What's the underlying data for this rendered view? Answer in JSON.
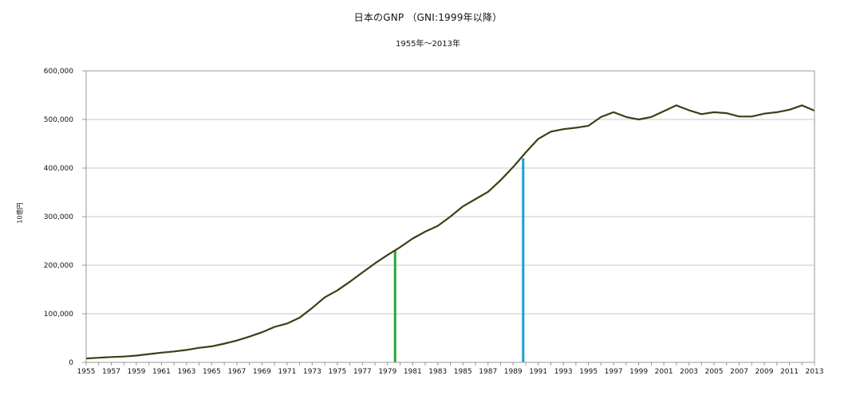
{
  "chart_data": {
    "type": "line",
    "title": "日本のGNP （GNI:1999年以降）",
    "subtitle": "1955年～2013年",
    "ylabel": "10億円",
    "xlabel": "",
    "ylim": [
      0,
      600000
    ],
    "yticks": [
      0,
      100000,
      200000,
      300000,
      400000,
      500000,
      600000
    ],
    "ytick_labels": [
      "0",
      "100,000",
      "200,000",
      "300,000",
      "400,000",
      "500,000",
      "600,000"
    ],
    "xlim": [
      1955,
      2013
    ],
    "xtick_labels": [
      "1955",
      "1957",
      "1959",
      "1961",
      "1963",
      "1965",
      "1967",
      "1969",
      "1971",
      "1973",
      "1975",
      "1977",
      "1979",
      "1981",
      "1983",
      "1985",
      "1987",
      "1989",
      "1991",
      "1993",
      "1995",
      "1997",
      "1999",
      "2001",
      "2003",
      "2005",
      "2007",
      "2009",
      "2011",
      "2013"
    ],
    "grid": true,
    "line_color": "#3b3f14",
    "series": [
      {
        "x": [
          1955,
          1956,
          1957,
          1958,
          1959,
          1960,
          1961,
          1962,
          1963,
          1964,
          1965,
          1966,
          1967,
          1968,
          1969,
          1970,
          1971,
          1972,
          1973,
          1974,
          1975,
          1976,
          1977,
          1978,
          1979,
          1980,
          1981,
          1982,
          1983,
          1984,
          1985,
          1986,
          1987,
          1988,
          1989,
          1990,
          1991,
          1992,
          1993,
          1994,
          1995,
          1996,
          1997,
          1998,
          1999,
          2000,
          2001,
          2002,
          2003,
          2004,
          2005,
          2006,
          2007,
          2008,
          2009,
          2010,
          2011,
          2012,
          2013
        ],
        "values": [
          8000,
          9500,
          11000,
          12000,
          14000,
          17000,
          20000,
          22500,
          25500,
          30000,
          33000,
          38500,
          45000,
          53000,
          62000,
          73000,
          80000,
          92000,
          112000,
          134000,
          148000,
          166000,
          185000,
          204000,
          221000,
          237000,
          255000,
          269000,
          281000,
          300000,
          321000,
          336000,
          351000,
          375000,
          402000,
          432000,
          460000,
          475000,
          480000,
          483000,
          487000,
          505000,
          515000,
          505000,
          500000,
          505000,
          517000,
          529000,
          519000,
          511000,
          515000,
          513000,
          506000,
          506000,
          512000,
          515000,
          520000,
          529000,
          518000
        ]
      }
    ],
    "markers": [
      {
        "x": 1979.6,
        "value": 230000,
        "color": "#2aa53a"
      },
      {
        "x": 1989.8,
        "value": 420000,
        "color": "#1a9fd8"
      }
    ]
  }
}
